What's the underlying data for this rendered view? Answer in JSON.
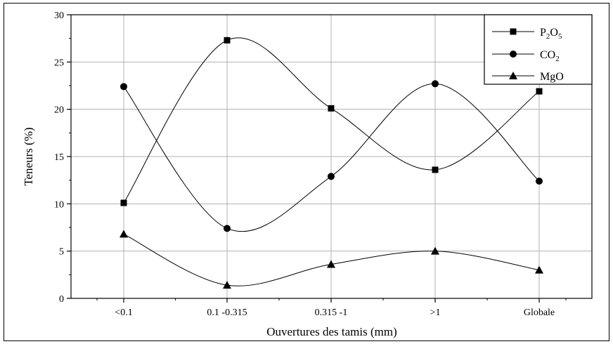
{
  "chart_data": {
    "type": "line",
    "categories": [
      "<0.1",
      "0.1 -0.315",
      "0.315 -1",
      ">1",
      "Globale"
    ],
    "xlabel": "Ouvertures des tamis (mm)",
    "ylabel": "Teneurs (%)",
    "ylim": [
      0,
      30
    ],
    "yticks": [
      0,
      5,
      10,
      15,
      20,
      25,
      30
    ],
    "grid": true,
    "legend_position": "top-right",
    "series": [
      {
        "name": "P2O5",
        "label_main": "P",
        "label_sub1": "2",
        "label_mid": "O",
        "label_sub2": "5",
        "marker": "square",
        "values": [
          10.1,
          27.3,
          20.1,
          13.6,
          21.9
        ]
      },
      {
        "name": "CO2",
        "label_main": "CO",
        "label_sub1": "2",
        "label_mid": "",
        "label_sub2": "",
        "marker": "circle",
        "values": [
          22.4,
          7.4,
          12.9,
          22.7,
          12.4
        ]
      },
      {
        "name": "MgO",
        "label_main": "MgO",
        "label_sub1": "",
        "label_mid": "",
        "label_sub2": "",
        "marker": "triangle",
        "values": [
          6.8,
          1.4,
          3.6,
          5.0,
          3.0
        ]
      }
    ]
  }
}
